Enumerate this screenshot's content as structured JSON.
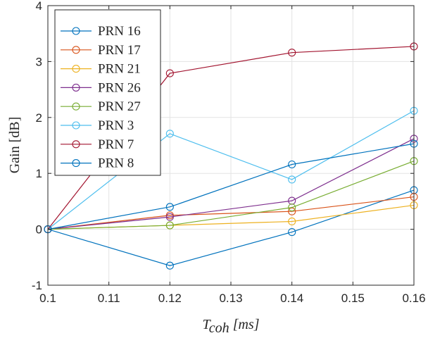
{
  "chart_data": {
    "type": "line",
    "title": "",
    "xlabel_main": "T",
    "xlabel_sub": "coh",
    "xlabel_unit": "[ms]",
    "ylabel": "Gain [dB]",
    "xlim": [
      0.1,
      0.16
    ],
    "ylim": [
      -1,
      4
    ],
    "x_ticks": [
      0.1,
      0.11,
      0.12,
      0.13,
      0.14,
      0.15,
      0.16
    ],
    "x_tick_labels": [
      "0.1",
      "0.11",
      "0.12",
      "0.13",
      "0.14",
      "0.15",
      "0.16"
    ],
    "y_ticks": [
      -1,
      0,
      1,
      2,
      3,
      4
    ],
    "y_tick_labels": [
      "-1",
      "0",
      "1",
      "2",
      "3",
      "4"
    ],
    "grid": true,
    "legend_position": "top-left",
    "marker": "open-circle",
    "x": [
      0.1,
      0.12,
      0.14,
      0.16
    ],
    "series": [
      {
        "name": "PRN 16",
        "color": "#0072BD",
        "values": [
          0,
          -0.65,
          -0.05,
          0.7
        ]
      },
      {
        "name": "PRN 17",
        "color": "#D95319",
        "values": [
          0,
          0.25,
          0.32,
          0.58
        ]
      },
      {
        "name": "PRN 21",
        "color": "#EDB120",
        "values": [
          0,
          0.07,
          0.14,
          0.43
        ]
      },
      {
        "name": "PRN 26",
        "color": "#7E2F8E",
        "values": [
          0,
          0.22,
          0.51,
          1.62
        ]
      },
      {
        "name": "PRN 27",
        "color": "#77AC30",
        "values": [
          0,
          0.07,
          0.39,
          1.22
        ]
      },
      {
        "name": "PRN 3",
        "color": "#4DBEEE",
        "values": [
          0,
          1.71,
          0.89,
          2.12
        ]
      },
      {
        "name": "PRN 7",
        "color": "#A2142F",
        "values": [
          0,
          2.79,
          3.16,
          3.27
        ]
      },
      {
        "name": "PRN 8",
        "color": "#0072BD",
        "values": [
          0,
          0.4,
          1.16,
          1.53
        ]
      }
    ]
  }
}
